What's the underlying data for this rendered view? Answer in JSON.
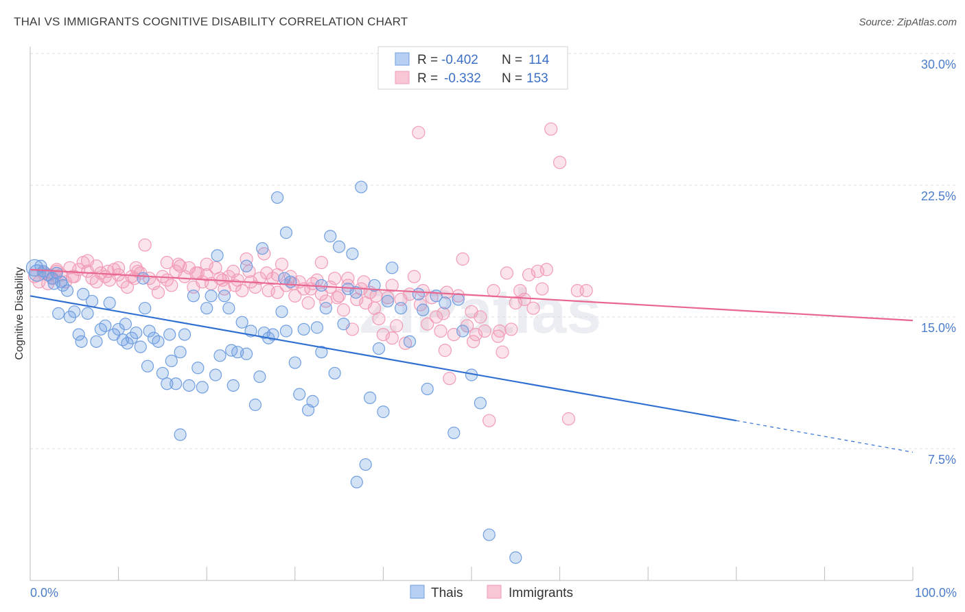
{
  "header": {
    "title": "THAI VS IMMIGRANTS COGNITIVE DISABILITY CORRELATION CHART",
    "source": "Source: ZipAtlas.com"
  },
  "watermark": "ZIPatlas",
  "legend": {
    "r_label": "R =",
    "n_label": "N =",
    "thais": {
      "r": "-0.402",
      "n": "114"
    },
    "immigrants": {
      "r": "-0.332",
      "n": "153"
    }
  },
  "colors": {
    "thais": "#6f9ee0",
    "thais_line": "#2e6fd1",
    "immigrants": "#f29bb6",
    "immigrants_line": "#e8668f"
  },
  "chart_data": {
    "type": "scatter",
    "title": "THAI VS IMMIGRANTS COGNITIVE DISABILITY CORRELATION CHART",
    "xlabel": "",
    "ylabel": "Cognitive Disability",
    "xlim": [
      0,
      100
    ],
    "ylim": [
      0,
      30
    ],
    "x_tick_labels": [
      "0.0%",
      "100.0%"
    ],
    "y_ticks": [
      {
        "value": 7.5,
        "label": "7.5%"
      },
      {
        "value": 15.0,
        "label": "15.0%"
      },
      {
        "value": 22.5,
        "label": "22.5%"
      },
      {
        "value": 30.0,
        "label": "30.0%"
      }
    ],
    "series": [
      {
        "name": "Thais",
        "r": -0.402,
        "n": 114,
        "trend": {
          "x0": 0,
          "y0": 16.2,
          "x1": 80,
          "y1": 9.1,
          "dash_x1": 100,
          "dash_y1": 7.3
        },
        "points": [
          [
            0.5,
            17.8
          ],
          [
            0.8,
            17.5
          ],
          [
            1.2,
            17.9
          ],
          [
            1.5,
            17.6
          ],
          [
            2.0,
            17.4
          ],
          [
            2.5,
            17.2
          ],
          [
            3.0,
            17.5
          ],
          [
            3.5,
            17.0
          ],
          [
            3.7,
            16.8
          ],
          [
            4.2,
            16.5
          ],
          [
            4.5,
            15.0
          ],
          [
            5.0,
            15.3
          ],
          [
            5.5,
            14.0
          ],
          [
            5.8,
            13.6
          ],
          [
            6.5,
            15.2
          ],
          [
            7.0,
            15.9
          ],
          [
            7.5,
            13.6
          ],
          [
            8.0,
            14.3
          ],
          [
            8.5,
            14.5
          ],
          [
            9.0,
            15.8
          ],
          [
            9.5,
            14.0
          ],
          [
            10.0,
            14.3
          ],
          [
            10.5,
            13.7
          ],
          [
            11.0,
            13.5
          ],
          [
            11.5,
            13.8
          ],
          [
            12.0,
            14.1
          ],
          [
            12.5,
            13.3
          ],
          [
            13.0,
            15.5
          ],
          [
            13.3,
            12.2
          ],
          [
            13.5,
            14.2
          ],
          [
            14.0,
            13.8
          ],
          [
            14.5,
            13.6
          ],
          [
            15.0,
            11.8
          ],
          [
            15.5,
            11.2
          ],
          [
            16.0,
            12.5
          ],
          [
            16.5,
            11.2
          ],
          [
            17.0,
            13.0
          ],
          [
            17.5,
            14.0
          ],
          [
            18.0,
            11.1
          ],
          [
            18.5,
            16.2
          ],
          [
            19.0,
            12.1
          ],
          [
            19.5,
            11.0
          ],
          [
            20.0,
            15.5
          ],
          [
            20.5,
            16.2
          ],
          [
            21.0,
            11.7
          ],
          [
            21.5,
            12.8
          ],
          [
            22.0,
            16.2
          ],
          [
            22.5,
            15.5
          ],
          [
            23.0,
            11.1
          ],
          [
            23.5,
            13.0
          ],
          [
            24.0,
            14.7
          ],
          [
            24.5,
            12.9
          ],
          [
            25.0,
            14.2
          ],
          [
            25.5,
            10.0
          ],
          [
            26.0,
            11.6
          ],
          [
            26.5,
            14.1
          ],
          [
            27.0,
            13.8
          ],
          [
            27.5,
            14.0
          ],
          [
            28.0,
            21.8
          ],
          [
            28.5,
            15.3
          ],
          [
            29.0,
            14.2
          ],
          [
            29.5,
            17.0
          ],
          [
            30.0,
            12.4
          ],
          [
            30.5,
            10.6
          ],
          [
            31.0,
            14.3
          ],
          [
            31.5,
            9.7
          ],
          [
            32.0,
            10.2
          ],
          [
            32.5,
            14.4
          ],
          [
            33.0,
            13.0
          ],
          [
            33.5,
            15.5
          ],
          [
            34.0,
            19.6
          ],
          [
            34.5,
            11.8
          ],
          [
            35.0,
            19.0
          ],
          [
            35.5,
            14.6
          ],
          [
            36.0,
            16.6
          ],
          [
            36.5,
            18.6
          ],
          [
            37.0,
            5.6
          ],
          [
            37.5,
            22.4
          ],
          [
            38.0,
            6.6
          ],
          [
            38.5,
            10.4
          ],
          [
            39.0,
            16.8
          ],
          [
            39.5,
            13.2
          ],
          [
            40.0,
            9.6
          ],
          [
            41.0,
            17.8
          ],
          [
            42.0,
            15.5
          ],
          [
            43.0,
            13.6
          ],
          [
            44.0,
            16.3
          ],
          [
            45.0,
            10.9
          ],
          [
            46.0,
            16.2
          ],
          [
            47.0,
            15.8
          ],
          [
            48.0,
            8.4
          ],
          [
            49.0,
            14.2
          ],
          [
            50.0,
            11.7
          ],
          [
            51.0,
            10.1
          ],
          [
            52.0,
            2.6
          ],
          [
            55.0,
            1.3
          ],
          [
            29.0,
            19.8
          ],
          [
            17.0,
            8.3
          ],
          [
            26.3,
            18.9
          ],
          [
            22.8,
            13.1
          ],
          [
            3.2,
            15.2
          ],
          [
            6.0,
            16.3
          ],
          [
            10.8,
            14.6
          ],
          [
            15.8,
            14.0
          ],
          [
            12.8,
            17.2
          ],
          [
            21.2,
            18.5
          ],
          [
            24.5,
            17.9
          ],
          [
            33.0,
            16.8
          ],
          [
            28.8,
            17.2
          ],
          [
            36.9,
            16.4
          ],
          [
            40.5,
            15.9
          ],
          [
            44.5,
            15.4
          ],
          [
            48.5,
            16.0
          ],
          [
            2.7,
            16.9
          ]
        ]
      },
      {
        "name": "Immigrants",
        "r": -0.332,
        "n": 153,
        "trend": {
          "x0": 0,
          "y0": 17.7,
          "x1": 100,
          "y1": 14.8
        },
        "points": [
          [
            0.5,
            17.3
          ],
          [
            1.0,
            17.0
          ],
          [
            1.5,
            17.5
          ],
          [
            2.0,
            16.9
          ],
          [
            2.5,
            17.2
          ],
          [
            3.0,
            17.6
          ],
          [
            3.5,
            17.4
          ],
          [
            4.0,
            17.0
          ],
          [
            4.5,
            17.8
          ],
          [
            5.0,
            17.3
          ],
          [
            5.5,
            17.7
          ],
          [
            6.0,
            18.1
          ],
          [
            6.5,
            17.6
          ],
          [
            7.0,
            17.2
          ],
          [
            7.5,
            17.0
          ],
          [
            8.0,
            17.5
          ],
          [
            8.5,
            17.3
          ],
          [
            9.0,
            17.1
          ],
          [
            9.5,
            17.7
          ],
          [
            10.0,
            17.4
          ],
          [
            10.5,
            17.0
          ],
          [
            11.0,
            16.7
          ],
          [
            11.5,
            17.3
          ],
          [
            12.0,
            17.8
          ],
          [
            12.5,
            17.5
          ],
          [
            13.0,
            19.1
          ],
          [
            13.5,
            17.2
          ],
          [
            14.0,
            16.9
          ],
          [
            14.5,
            16.4
          ],
          [
            15.0,
            17.3
          ],
          [
            15.5,
            17.1
          ],
          [
            16.0,
            16.8
          ],
          [
            16.5,
            17.6
          ],
          [
            17.0,
            17.9
          ],
          [
            17.5,
            17.3
          ],
          [
            18.0,
            17.8
          ],
          [
            18.5,
            16.7
          ],
          [
            19.0,
            17.5
          ],
          [
            19.5,
            17.0
          ],
          [
            20.0,
            17.4
          ],
          [
            20.5,
            16.9
          ],
          [
            21.0,
            17.8
          ],
          [
            21.5,
            17.2
          ],
          [
            22.0,
            16.6
          ],
          [
            22.5,
            17.3
          ],
          [
            23.0,
            17.6
          ],
          [
            23.5,
            17.1
          ],
          [
            24.0,
            16.5
          ],
          [
            24.5,
            18.3
          ],
          [
            25.0,
            17.0
          ],
          [
            25.5,
            16.7
          ],
          [
            26.0,
            17.2
          ],
          [
            26.5,
            18.6
          ],
          [
            27.0,
            16.5
          ],
          [
            27.5,
            17.2
          ],
          [
            28.0,
            16.4
          ],
          [
            28.5,
            18.0
          ],
          [
            29.0,
            16.8
          ],
          [
            29.5,
            17.3
          ],
          [
            30.0,
            16.2
          ],
          [
            30.5,
            17.0
          ],
          [
            31.0,
            16.6
          ],
          [
            31.5,
            15.8
          ],
          [
            32.0,
            16.9
          ],
          [
            32.5,
            17.1
          ],
          [
            33.0,
            16.3
          ],
          [
            33.5,
            15.9
          ],
          [
            34.0,
            16.7
          ],
          [
            34.5,
            17.2
          ],
          [
            35.0,
            16.2
          ],
          [
            35.5,
            15.4
          ],
          [
            36.0,
            16.8
          ],
          [
            36.5,
            14.3
          ],
          [
            37.0,
            16.0
          ],
          [
            37.5,
            16.6
          ],
          [
            38.0,
            15.8
          ],
          [
            38.5,
            16.4
          ],
          [
            39.0,
            15.5
          ],
          [
            39.5,
            14.9
          ],
          [
            40.0,
            14.0
          ],
          [
            40.5,
            16.1
          ],
          [
            41.0,
            13.8
          ],
          [
            41.5,
            14.5
          ],
          [
            42.0,
            16.0
          ],
          [
            42.5,
            13.5
          ],
          [
            43.0,
            16.3
          ],
          [
            43.5,
            17.3
          ],
          [
            44.0,
            25.5
          ],
          [
            44.5,
            16.5
          ],
          [
            45.0,
            14.6
          ],
          [
            45.5,
            16.1
          ],
          [
            46.0,
            15.0
          ],
          [
            46.5,
            14.2
          ],
          [
            47.0,
            13.1
          ],
          [
            47.5,
            11.5
          ],
          [
            48.0,
            14.0
          ],
          [
            48.5,
            16.2
          ],
          [
            49.0,
            18.3
          ],
          [
            49.5,
            14.5
          ],
          [
            50.0,
            15.3
          ],
          [
            50.5,
            14.0
          ],
          [
            51.0,
            15.0
          ],
          [
            51.5,
            14.2
          ],
          [
            52.0,
            9.1
          ],
          [
            52.5,
            16.5
          ],
          [
            53.0,
            13.9
          ],
          [
            53.5,
            13.0
          ],
          [
            54.0,
            17.5
          ],
          [
            54.5,
            14.3
          ],
          [
            55.0,
            15.8
          ],
          [
            55.5,
            16.5
          ],
          [
            56.0,
            16.0
          ],
          [
            56.5,
            17.4
          ],
          [
            57.0,
            15.5
          ],
          [
            57.5,
            17.6
          ],
          [
            58.0,
            16.6
          ],
          [
            58.5,
            17.7
          ],
          [
            59.0,
            25.7
          ],
          [
            60.0,
            23.8
          ],
          [
            61.0,
            9.2
          ],
          [
            62.0,
            16.5
          ],
          [
            63.0,
            16.5
          ],
          [
            20.0,
            18.0
          ],
          [
            15.5,
            18.1
          ],
          [
            10.0,
            17.8
          ],
          [
            6.5,
            18.2
          ],
          [
            28.0,
            17.4
          ],
          [
            33.0,
            18.1
          ],
          [
            36.0,
            17.2
          ],
          [
            3.0,
            17.7
          ],
          [
            7.5,
            17.9
          ],
          [
            11.8,
            17.2
          ],
          [
            16.8,
            18.0
          ],
          [
            21.8,
            17.1
          ],
          [
            24.8,
            17.6
          ],
          [
            29.8,
            16.9
          ],
          [
            31.8,
            16.6
          ],
          [
            34.8,
            16.1
          ],
          [
            37.8,
            17.0
          ],
          [
            41.0,
            16.8
          ],
          [
            44.2,
            15.7
          ],
          [
            47.2,
            16.4
          ],
          [
            50.2,
            13.6
          ],
          [
            53.2,
            14.2
          ],
          [
            46.8,
            15.2
          ],
          [
            39.2,
            16.2
          ],
          [
            26.8,
            17.5
          ],
          [
            18.8,
            17.5
          ],
          [
            12.2,
            17.6
          ],
          [
            8.8,
            17.6
          ],
          [
            4.8,
            17.3
          ],
          [
            2.2,
            17.4
          ],
          [
            23.2,
            16.8
          ]
        ]
      }
    ]
  },
  "bottom_legend": [
    "Thais",
    "Immigrants"
  ]
}
